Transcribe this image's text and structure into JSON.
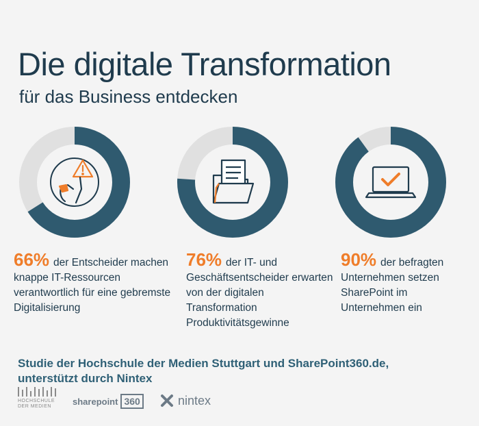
{
  "header": {
    "title": "Die digitale Transformation",
    "subtitle": "für das Business entdecken"
  },
  "colors": {
    "background": "#f4f4f4",
    "ring_filled": "#2f5a6f",
    "ring_empty": "#e0e0e0",
    "accent": "#ef7d2a",
    "text": "#1f3b4d"
  },
  "chart_data": {
    "type": "pie",
    "style": "donut",
    "series": [
      {
        "value": 66,
        "label": "66%",
        "text": "der Entscheider machen knappe IT-Ressourcen verantwortlich für eine gebremste Digitalisierung",
        "icon": "warning-person-icon"
      },
      {
        "value": 76,
        "label": "76%",
        "text": "der IT- und Geschäftsentscheider erwarten von der digitalen Transformation Produktivitätsgewinne",
        "icon": "folder-document-icon"
      },
      {
        "value": 90,
        "label": "90%",
        "text": "der befragten Unternehmen setzen SharePoint im Unternehmen ein",
        "icon": "laptop-check-icon"
      }
    ]
  },
  "footer": {
    "text": "Studie der Hochschule der Medien Stuttgart und SharePoint360.de, unterstützt durch Nintex"
  },
  "logos": {
    "hdm_line1": "HOCHSCHULE",
    "hdm_line2": "DER MEDIEN",
    "sharepoint_text": "sharepoint",
    "sharepoint_box": "360",
    "nintex_text": "nintex"
  }
}
